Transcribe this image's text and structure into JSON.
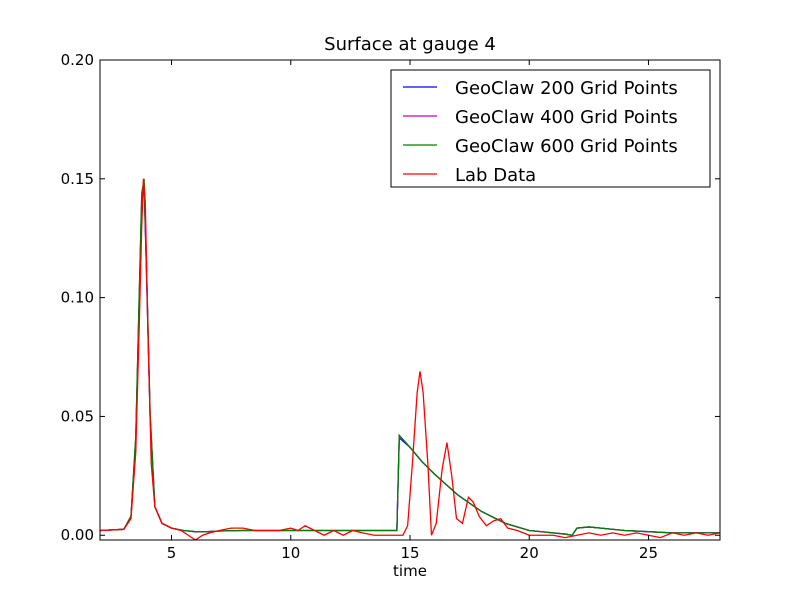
{
  "chart_data": {
    "type": "line",
    "title": "Surface at gauge 4",
    "xlabel": "time",
    "ylabel": "",
    "xlim": [
      2,
      28
    ],
    "ylim": [
      -0.002,
      0.2
    ],
    "x_ticks": [
      5,
      10,
      15,
      20,
      25
    ],
    "x_tick_labels": [
      "5",
      "10",
      "15",
      "20",
      "25"
    ],
    "y_ticks": [
      0.0,
      0.05,
      0.1,
      0.15,
      0.2
    ],
    "y_tick_labels": [
      "0.00",
      "0.05",
      "0.10",
      "0.15",
      "0.20"
    ],
    "grid": false,
    "legend_position": "top-right",
    "series": [
      {
        "name": "GeoClaw 200 Grid Points",
        "color": "#0000ff",
        "x": [
          2.0,
          3.0,
          3.3,
          3.5,
          3.65,
          3.75,
          3.85,
          3.95,
          4.1,
          4.3,
          4.6,
          5.0,
          5.5,
          6.0,
          6.5,
          7.0,
          8.0,
          9.0,
          10.0,
          12.0,
          14.0,
          14.45,
          14.55,
          15.0,
          15.5,
          16.0,
          17.0,
          18.0,
          19.0,
          20.0,
          21.0,
          21.5,
          21.8,
          22.0,
          22.5,
          23.0,
          24.0,
          25.0,
          26.0,
          27.0,
          28.0
        ],
        "y": [
          0.002,
          0.0025,
          0.008,
          0.04,
          0.1,
          0.14,
          0.147,
          0.11,
          0.05,
          0.012,
          0.005,
          0.003,
          0.002,
          0.0015,
          0.0015,
          0.0018,
          0.002,
          0.002,
          0.002,
          0.002,
          0.002,
          0.002,
          0.041,
          0.037,
          0.031,
          0.026,
          0.017,
          0.01,
          0.005,
          0.002,
          0.001,
          0.0005,
          0.0,
          0.003,
          0.0035,
          0.003,
          0.002,
          0.0015,
          0.001,
          0.001,
          0.001
        ]
      },
      {
        "name": "GeoClaw 400 Grid Points",
        "color": "#bf00bf",
        "x": [
          2.0,
          3.0,
          3.3,
          3.5,
          3.65,
          3.75,
          3.85,
          3.95,
          4.1,
          4.3,
          4.6,
          5.0,
          5.5,
          6.0,
          6.5,
          7.0,
          8.0,
          9.0,
          10.0,
          12.0,
          14.0,
          14.45,
          14.55,
          15.0,
          15.5,
          16.0,
          17.0,
          18.0,
          19.0,
          20.0,
          21.0,
          21.5,
          21.8,
          22.0,
          22.5,
          23.0,
          24.0,
          25.0,
          26.0,
          27.0,
          28.0
        ],
        "y": [
          0.002,
          0.0025,
          0.008,
          0.041,
          0.102,
          0.142,
          0.148,
          0.112,
          0.051,
          0.012,
          0.005,
          0.003,
          0.002,
          0.0015,
          0.0015,
          0.0018,
          0.002,
          0.002,
          0.002,
          0.002,
          0.002,
          0.002,
          0.042,
          0.037,
          0.031,
          0.026,
          0.017,
          0.01,
          0.005,
          0.002,
          0.001,
          0.0005,
          0.0,
          0.003,
          0.0035,
          0.003,
          0.002,
          0.0015,
          0.001,
          0.001,
          0.001
        ]
      },
      {
        "name": "GeoClaw 600 Grid Points",
        "color": "#008000",
        "x": [
          2.0,
          3.0,
          3.3,
          3.5,
          3.65,
          3.75,
          3.85,
          3.95,
          4.1,
          4.3,
          4.6,
          5.0,
          5.5,
          6.0,
          6.5,
          7.0,
          8.0,
          9.0,
          10.0,
          12.0,
          14.0,
          14.45,
          14.55,
          15.0,
          15.5,
          16.0,
          17.0,
          18.0,
          19.0,
          20.0,
          21.0,
          21.5,
          21.8,
          22.0,
          22.5,
          23.0,
          24.0,
          25.0,
          26.0,
          27.0,
          28.0
        ],
        "y": [
          0.002,
          0.0025,
          0.008,
          0.042,
          0.104,
          0.144,
          0.15,
          0.114,
          0.052,
          0.012,
          0.005,
          0.003,
          0.002,
          0.0015,
          0.0015,
          0.0018,
          0.002,
          0.002,
          0.002,
          0.002,
          0.002,
          0.002,
          0.042,
          0.037,
          0.031,
          0.026,
          0.017,
          0.01,
          0.005,
          0.002,
          0.001,
          0.0005,
          0.0,
          0.003,
          0.0035,
          0.003,
          0.002,
          0.0015,
          0.001,
          0.001,
          0.001
        ]
      },
      {
        "name": "Lab Data",
        "color": "#ff0000",
        "x": [
          2.0,
          3.0,
          3.3,
          3.5,
          3.65,
          3.75,
          3.82,
          3.9,
          4.0,
          4.15,
          4.3,
          4.6,
          5.0,
          5.4,
          5.7,
          6.0,
          6.3,
          6.6,
          7.0,
          7.5,
          8.0,
          8.5,
          9.0,
          9.5,
          10.0,
          10.3,
          10.6,
          11.0,
          11.4,
          11.8,
          12.2,
          12.6,
          13.0,
          13.5,
          14.0,
          14.4,
          14.7,
          14.9,
          15.1,
          15.3,
          15.42,
          15.55,
          15.75,
          15.9,
          16.1,
          16.35,
          16.55,
          16.75,
          16.95,
          17.2,
          17.45,
          17.65,
          17.9,
          18.2,
          18.5,
          18.8,
          19.1,
          19.5,
          20.0,
          20.5,
          21.0,
          21.5,
          22.0,
          22.5,
          23.0,
          23.5,
          24.0,
          24.5,
          25.0,
          25.5,
          26.0,
          26.5,
          27.0,
          27.5,
          28.0
        ],
        "y": [
          0.002,
          0.0025,
          0.007,
          0.035,
          0.09,
          0.13,
          0.15,
          0.14,
          0.09,
          0.03,
          0.012,
          0.005,
          0.003,
          0.002,
          0.0,
          -0.002,
          0.0,
          0.001,
          0.002,
          0.003,
          0.003,
          0.002,
          0.002,
          0.002,
          0.003,
          0.002,
          0.004,
          0.002,
          0.0,
          0.002,
          0.0,
          0.002,
          0.001,
          0.0,
          0.0,
          0.0,
          0.0,
          0.004,
          0.03,
          0.06,
          0.069,
          0.06,
          0.03,
          0.0,
          0.005,
          0.028,
          0.039,
          0.025,
          0.007,
          0.005,
          0.016,
          0.014,
          0.008,
          0.004,
          0.006,
          0.007,
          0.003,
          0.002,
          0.0,
          0.0,
          0.0,
          -0.001,
          0.0,
          0.001,
          0.0,
          0.001,
          0.0,
          0.001,
          0.0,
          -0.001,
          0.001,
          0.0,
          0.001,
          0.0,
          0.001
        ]
      }
    ]
  }
}
